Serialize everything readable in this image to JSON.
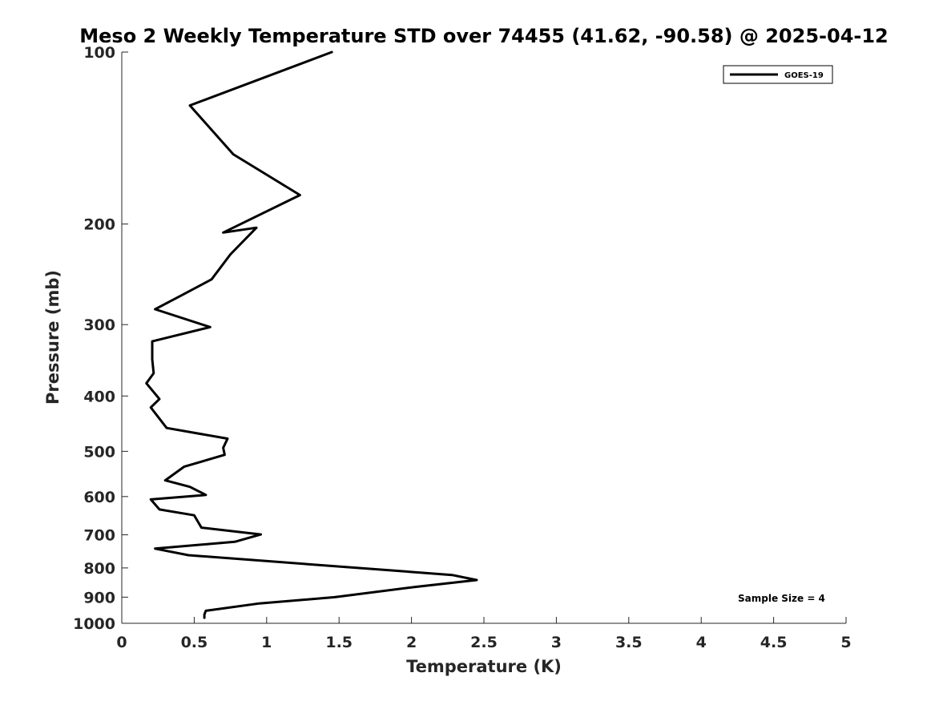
{
  "chart_data": {
    "type": "line",
    "title": "Meso 2 Weekly Temperature STD over 74455 (41.62, -90.58) @ 2025-04-12",
    "xlabel": "Temperature (K)",
    "ylabel": "Pressure (mb)",
    "xlim": [
      0,
      5
    ],
    "ylim": [
      1000,
      100
    ],
    "yscale": "log",
    "y_reversed": true,
    "grid": false,
    "xticks": [
      0,
      0.5,
      1,
      1.5,
      2,
      2.5,
      3,
      3.5,
      4,
      4.5,
      5
    ],
    "xtick_labels": [
      "0",
      "0.5",
      "1",
      "1.5",
      "2",
      "2.5",
      "3",
      "3.5",
      "4",
      "4.5",
      "5"
    ],
    "yticks": [
      100,
      200,
      300,
      400,
      500,
      600,
      700,
      800,
      900,
      1000
    ],
    "ytick_labels": [
      "100",
      "200",
      "300",
      "400",
      "500",
      "600",
      "700",
      "800",
      "900",
      "1000"
    ],
    "legend": {
      "placement": "top-right",
      "entries": [
        "GOES-19"
      ]
    },
    "annotation": "Sample Size = 4",
    "series": [
      {
        "name": "GOES-19",
        "color": "#000000",
        "points": [
          [
            1.45,
            100
          ],
          [
            0.47,
            124
          ],
          [
            0.77,
            151
          ],
          [
            1.23,
            178
          ],
          [
            0.7,
            207
          ],
          [
            0.93,
            203
          ],
          [
            0.75,
            226
          ],
          [
            0.62,
            250
          ],
          [
            0.42,
            266
          ],
          [
            0.23,
            282
          ],
          [
            0.61,
            303
          ],
          [
            0.21,
            321
          ],
          [
            0.21,
            345
          ],
          [
            0.22,
            365
          ],
          [
            0.17,
            380
          ],
          [
            0.26,
            405
          ],
          [
            0.2,
            419
          ],
          [
            0.31,
            455
          ],
          [
            0.73,
            475
          ],
          [
            0.7,
            493
          ],
          [
            0.71,
            507
          ],
          [
            0.43,
            532
          ],
          [
            0.3,
            562
          ],
          [
            0.47,
            577
          ],
          [
            0.58,
            596
          ],
          [
            0.2,
            607
          ],
          [
            0.26,
            632
          ],
          [
            0.5,
            647
          ],
          [
            0.55,
            680
          ],
          [
            0.96,
            699
          ],
          [
            0.78,
            720
          ],
          [
            0.23,
            740
          ],
          [
            0.46,
            760
          ],
          [
            2.28,
            823
          ],
          [
            2.45,
            840
          ],
          [
            2.02,
            864
          ],
          [
            1.47,
            900
          ],
          [
            0.95,
            923
          ],
          [
            0.58,
            951
          ],
          [
            0.57,
            965
          ],
          [
            0.57,
            978
          ]
        ]
      }
    ]
  }
}
